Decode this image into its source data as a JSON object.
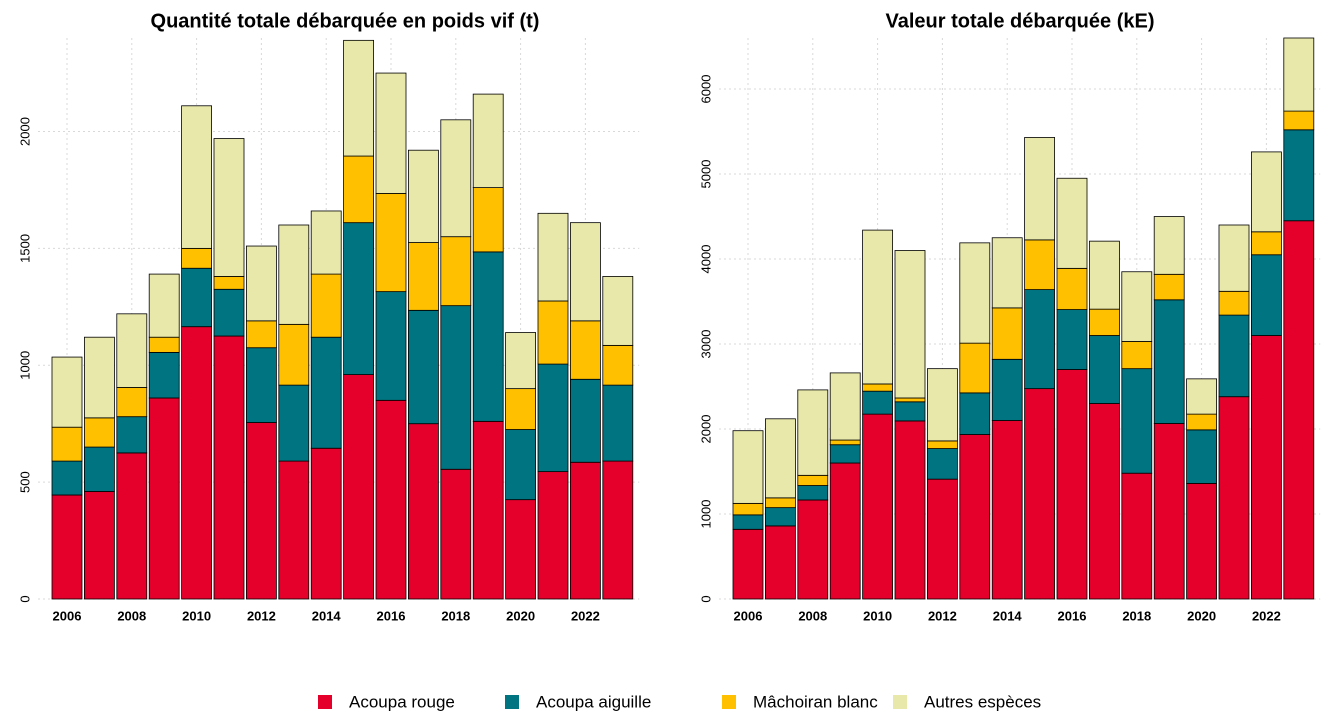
{
  "chart_data": [
    {
      "type": "bar",
      "stacked": true,
      "title": "Quantité totale débarquée en poids vif (t)",
      "categories": [
        "2006",
        null,
        "2008",
        null,
        "2010",
        null,
        "2012",
        null,
        "2014",
        null,
        "2016",
        null,
        "2018",
        null,
        "2020",
        null,
        "2022",
        null
      ],
      "ylim": [
        0,
        2400
      ],
      "yticks": [
        0,
        500,
        1000,
        1500,
        2000
      ],
      "grid": true,
      "series": [
        {
          "name": "Acoupa rouge",
          "color": "#e4002b",
          "values": [
            445,
            460,
            625,
            860,
            1165,
            1125,
            755,
            590,
            645,
            960,
            850,
            750,
            555,
            760,
            425,
            545,
            585,
            590
          ]
        },
        {
          "name": "Acoupa aiguille",
          "color": "#007480",
          "values": [
            145,
            190,
            155,
            195,
            250,
            200,
            320,
            325,
            475,
            650,
            465,
            485,
            700,
            725,
            300,
            460,
            355,
            325
          ]
        },
        {
          "name": "Mâchoiran blanc",
          "color": "#ffc000",
          "values": [
            145,
            125,
            125,
            65,
            85,
            55,
            115,
            260,
            270,
            285,
            420,
            290,
            295,
            275,
            175,
            270,
            250,
            170
          ]
        },
        {
          "name": "Autres espèces",
          "color": "#e8e8aa",
          "values": [
            300,
            345,
            315,
            270,
            610,
            590,
            320,
            425,
            270,
            495,
            515,
            395,
            500,
            400,
            240,
            375,
            420,
            295
          ]
        }
      ]
    },
    {
      "type": "bar",
      "stacked": true,
      "title": "Valeur totale débarquée (kE)",
      "categories": [
        "2006",
        null,
        "2008",
        null,
        "2010",
        null,
        "2012",
        null,
        "2014",
        null,
        "2016",
        null,
        "2018",
        null,
        "2020",
        null,
        "2022",
        null
      ],
      "ylim": [
        0,
        6600
      ],
      "yticks": [
        0,
        1000,
        2000,
        3000,
        4000,
        5000,
        6000
      ],
      "grid": true,
      "series": [
        {
          "color": "#e4002b",
          "values": [
            820,
            860,
            1165,
            1600,
            2175,
            2095,
            1410,
            1935,
            2100,
            2475,
            2700,
            2300,
            1480,
            2065,
            1360,
            2380,
            3100,
            4450
          ]
        },
        {
          "color": "#007480",
          "values": [
            170,
            215,
            170,
            215,
            270,
            225,
            360,
            490,
            720,
            1165,
            705,
            800,
            1230,
            1455,
            630,
            960,
            950,
            1070
          ]
        },
        {
          "color": "#ffc000",
          "values": [
            135,
            115,
            120,
            55,
            85,
            45,
            90,
            585,
            605,
            585,
            485,
            310,
            320,
            300,
            185,
            280,
            270,
            220
          ]
        },
        {
          "color": "#e8e8aa",
          "values": [
            855,
            930,
            1005,
            790,
            1810,
            1735,
            850,
            1180,
            825,
            1205,
            1060,
            800,
            820,
            680,
            415,
            780,
            940,
            860
          ]
        }
      ]
    }
  ]
}
